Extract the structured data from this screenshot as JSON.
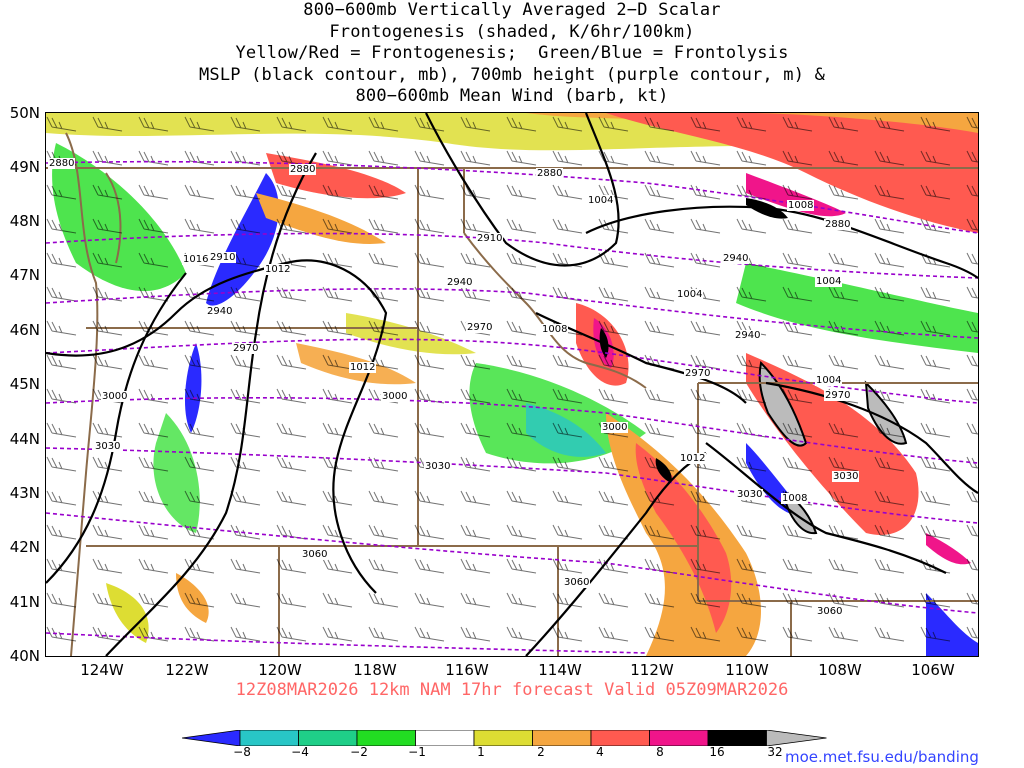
{
  "title": {
    "lines": [
      "800−600mb Vertically Averaged 2−D Scalar",
      "Frontogenesis (shaded, K/6hr/100km)",
      "Yellow/Red = Frontogenesis;  Green/Blue = Frontolysis",
      "MSLP (black contour, mb), 700mb height (purple contour, m) &",
      "800−600mb Mean Wind (barb, kt)"
    ]
  },
  "map": {
    "lat_labels": [
      "50N",
      "49N",
      "48N",
      "47N",
      "46N",
      "45N",
      "44N",
      "43N",
      "42N",
      "41N",
      "40N"
    ],
    "lon_labels": [
      "124W",
      "122W",
      "120W",
      "118W",
      "116W",
      "114W",
      "112W",
      "110W",
      "108W",
      "106W"
    ],
    "region": "Pacific Northwest / Northern Rockies",
    "mslp_labels": [
      "1016",
      "1012",
      "1012",
      "1008",
      "1004",
      "1004",
      "1008",
      "1012",
      "1008",
      "1004",
      "1004"
    ],
    "height_labels": [
      "2880",
      "2880",
      "2880",
      "2880",
      "2910",
      "2910",
      "2940",
      "2940",
      "2940",
      "2940",
      "2970",
      "2970",
      "2970",
      "2970",
      "3000",
      "3000",
      "3000",
      "3030",
      "3030",
      "3030",
      "3030",
      "3060",
      "3060",
      "3060"
    ]
  },
  "valid_line": "12Z08MAR2026 12km NAM 17hr forecast Valid 05Z09MAR2026",
  "colorbar": {
    "labels": [
      "−8",
      "−4",
      "−2",
      "−1",
      "1",
      "2",
      "4",
      "8",
      "16",
      "32"
    ],
    "colors": [
      "#2a2aff",
      "#28c6c6",
      "#1fcf88",
      "#22dd22",
      "#ffffff",
      "#dddd33",
      "#f5a640",
      "#ff5a50",
      "#f0158a",
      "#000000",
      "#bbbbbb"
    ]
  },
  "url": "moe.met.fsu.edu/banding",
  "style": {
    "mslp_color": "#000000",
    "height_color": "#9900cc",
    "border_color": "#8b6b4a",
    "valid_color": "#ff6666"
  }
}
